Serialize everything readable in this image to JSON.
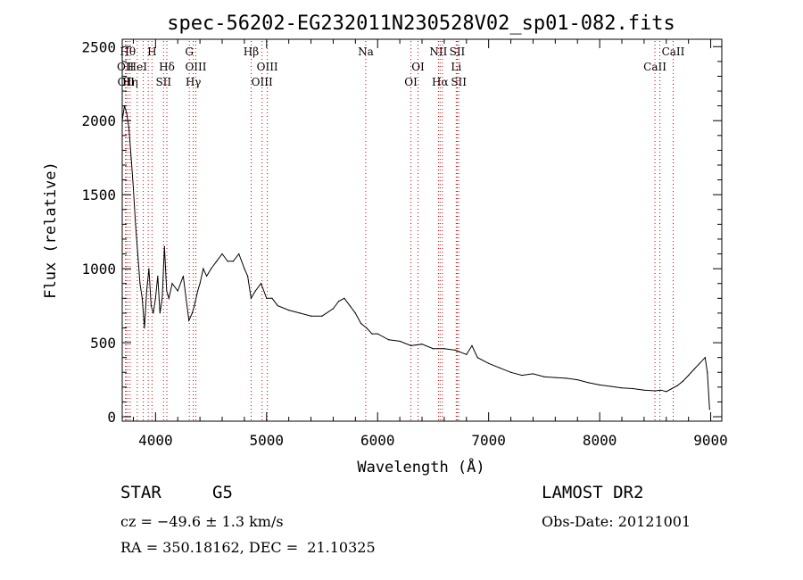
{
  "chart_data": {
    "type": "line",
    "title": "spec-56202-EG232011N230528V02_sp01-082.fits",
    "xlabel": "Wavelength (Å)",
    "ylabel": "Flux (relative)",
    "xlim": [
      3700,
      9100
    ],
    "ylim": [
      -30,
      2550
    ],
    "x_ticks": [
      4000,
      5000,
      6000,
      7000,
      8000,
      9000
    ],
    "y_ticks": [
      0,
      500,
      1000,
      1500,
      2000,
      2500
    ],
    "grid": false,
    "series": [
      {
        "x": [
          3700,
          3720,
          3740,
          3760,
          3780,
          3800,
          3820,
          3840,
          3860,
          3880,
          3900,
          3920,
          3940,
          3960,
          3980,
          4000,
          4020,
          4040,
          4060,
          4080,
          4100,
          4120,
          4150,
          4200,
          4250,
          4300,
          4330,
          4350,
          4380,
          4400,
          4430,
          4460,
          4500,
          4550,
          4600,
          4650,
          4700,
          4750,
          4800,
          4830,
          4860,
          4900,
          4950,
          5000,
          5050,
          5100,
          5200,
          5300,
          5400,
          5500,
          5600,
          5650,
          5700,
          5750,
          5800,
          5850,
          5900,
          5950,
          6000,
          6100,
          6200,
          6300,
          6400,
          6500,
          6600,
          6700,
          6800,
          6850,
          6900,
          7000,
          7100,
          7200,
          7300,
          7400,
          7500,
          7600,
          7700,
          7800,
          7900,
          8000,
          8100,
          8200,
          8300,
          8400,
          8500,
          8550,
          8600,
          8650,
          8700,
          8750,
          8800,
          8850,
          8900,
          8950,
          8970,
          8990
        ],
        "y": [
          2000,
          2100,
          2050,
          1950,
          1750,
          1550,
          1300,
          1100,
          900,
          800,
          600,
          850,
          1000,
          750,
          700,
          800,
          950,
          700,
          800,
          1150,
          850,
          800,
          900,
          850,
          950,
          650,
          700,
          750,
          850,
          900,
          1000,
          950,
          1000,
          1050,
          1100,
          1050,
          1050,
          1100,
          1000,
          950,
          800,
          850,
          900,
          800,
          800,
          750,
          720,
          700,
          680,
          680,
          730,
          780,
          800,
          750,
          700,
          630,
          600,
          560,
          560,
          520,
          510,
          480,
          490,
          460,
          460,
          450,
          420,
          480,
          400,
          360,
          330,
          300,
          280,
          290,
          270,
          265,
          260,
          250,
          230,
          215,
          205,
          195,
          190,
          180,
          175,
          180,
          170,
          190,
          210,
          240,
          280,
          320,
          360,
          400,
          300,
          50
        ],
        "color": "#000000"
      }
    ],
    "spectral_lines": [
      {
        "x": 3729,
        "label": "OII",
        "row": "mid"
      },
      {
        "x": 3734,
        "label": "OII",
        "row": "bot"
      },
      {
        "x": 3750,
        "label": "Hθ",
        "row": "top"
      },
      {
        "x": 3771,
        "label": "Hη",
        "row": "bot"
      },
      {
        "x": 3835,
        "label": "HeI",
        "row": "mid"
      },
      {
        "x": 3889,
        "label": "",
        "row": "none"
      },
      {
        "x": 3934,
        "label": "",
        "row": "none"
      },
      {
        "x": 3968,
        "label": "H",
        "row": "top"
      },
      {
        "x": 4102,
        "label": "Hδ",
        "row": "mid"
      },
      {
        "x": 4072,
        "label": "SII",
        "row": "bot"
      },
      {
        "x": 4304,
        "label": "G",
        "row": "top"
      },
      {
        "x": 4340,
        "label": "Hγ",
        "row": "bot"
      },
      {
        "x": 4363,
        "label": "OIII",
        "row": "mid"
      },
      {
        "x": 4861,
        "label": "Hβ",
        "row": "top"
      },
      {
        "x": 4959,
        "label": "OIII",
        "row": "bot"
      },
      {
        "x": 5007,
        "label": "OIII",
        "row": "mid"
      },
      {
        "x": 5893,
        "label": "Na",
        "row": "top"
      },
      {
        "x": 6300,
        "label": "OI",
        "row": "bot"
      },
      {
        "x": 6364,
        "label": "OI",
        "row": "mid"
      },
      {
        "x": 6548,
        "label": "NII",
        "row": "top"
      },
      {
        "x": 6563,
        "label": "Hα",
        "row": "bot"
      },
      {
        "x": 6584,
        "label": "",
        "row": "none"
      },
      {
        "x": 6708,
        "label": "Li",
        "row": "mid"
      },
      {
        "x": 6717,
        "label": "SII",
        "row": "top"
      },
      {
        "x": 6731,
        "label": "SII",
        "row": "bot"
      },
      {
        "x": 8498,
        "label": "CaII",
        "row": "mid"
      },
      {
        "x": 8542,
        "label": "",
        "row": "none"
      },
      {
        "x": 8662,
        "label": "CaII",
        "row": "top"
      }
    ],
    "line_marker_color": "#cc0000"
  },
  "info": {
    "object_class": "STAR",
    "subclass": "G5",
    "survey": "LAMOST DR2",
    "redshift": "cz = −49.6 ± 1.3 km/s",
    "obs_date": "Obs-Date: 20121001",
    "coords": "RA = 350.18162, DEC =  21.10325"
  }
}
